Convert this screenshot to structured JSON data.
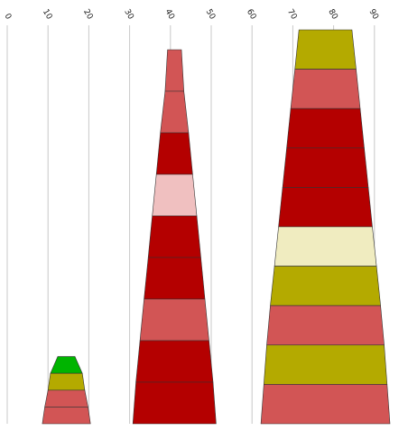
{
  "chart_data": {
    "type": "funnel",
    "x_axis": {
      "position": "top",
      "ticks": [
        0,
        10,
        20,
        30,
        40,
        50,
        60,
        70,
        80,
        90
      ],
      "tick_labels": [
        "0",
        "10",
        "20",
        "30",
        "40",
        "50",
        "60",
        "70",
        "80",
        "90"
      ],
      "range": [
        0,
        100
      ],
      "grid": true
    },
    "colors": {
      "green": "#00b400",
      "olive": "#b4aa00",
      "salmon": "#d25555",
      "darkred": "#b40000",
      "pink": "#f0c0c0",
      "cream": "#f0ecc0"
    },
    "funnels": [
      {
        "center": 14.5,
        "segments": [
          {
            "bottom_width": 7.8,
            "top_width": 4.2,
            "color": "green"
          },
          {
            "bottom_width": 9.0,
            "top_width": 7.8,
            "color": "olive"
          },
          {
            "bottom_width": 10.6,
            "top_width": 9.0,
            "color": "salmon"
          },
          {
            "bottom_width": 11.8,
            "top_width": 10.6,
            "color": "salmon"
          }
        ]
      },
      {
        "center": 41.0,
        "segments": [
          {
            "bottom_width": 4.6,
            "top_width": 3.4,
            "color": "salmon"
          },
          {
            "bottom_width": 6.9,
            "top_width": 4.6,
            "color": "salmon"
          },
          {
            "bottom_width": 8.9,
            "top_width": 6.9,
            "color": "darkred"
          },
          {
            "bottom_width": 10.9,
            "top_width": 8.9,
            "color": "pink"
          },
          {
            "bottom_width": 12.9,
            "top_width": 10.9,
            "color": "darkred"
          },
          {
            "bottom_width": 14.9,
            "top_width": 12.9,
            "color": "darkred"
          },
          {
            "bottom_width": 16.9,
            "top_width": 14.9,
            "color": "salmon"
          },
          {
            "bottom_width": 18.9,
            "top_width": 16.9,
            "color": "darkred"
          },
          {
            "bottom_width": 20.4,
            "top_width": 18.9,
            "color": "darkred"
          }
        ]
      },
      {
        "center": 78.0,
        "segments": [
          {
            "bottom_width": 15.0,
            "top_width": 13.0,
            "color": "olive"
          },
          {
            "bottom_width": 17.0,
            "top_width": 15.0,
            "color": "salmon"
          },
          {
            "bottom_width": 19.0,
            "top_width": 17.0,
            "color": "darkred"
          },
          {
            "bottom_width": 21.0,
            "top_width": 19.0,
            "color": "darkred"
          },
          {
            "bottom_width": 23.0,
            "top_width": 21.0,
            "color": "darkred"
          },
          {
            "bottom_width": 25.0,
            "top_width": 23.0,
            "color": "cream"
          },
          {
            "bottom_width": 27.0,
            "top_width": 25.0,
            "color": "olive"
          },
          {
            "bottom_width": 28.8,
            "top_width": 27.0,
            "color": "salmon"
          },
          {
            "bottom_width": 30.2,
            "top_width": 28.8,
            "color": "olive"
          },
          {
            "bottom_width": 31.6,
            "top_width": 30.2,
            "color": "salmon"
          }
        ]
      }
    ]
  }
}
